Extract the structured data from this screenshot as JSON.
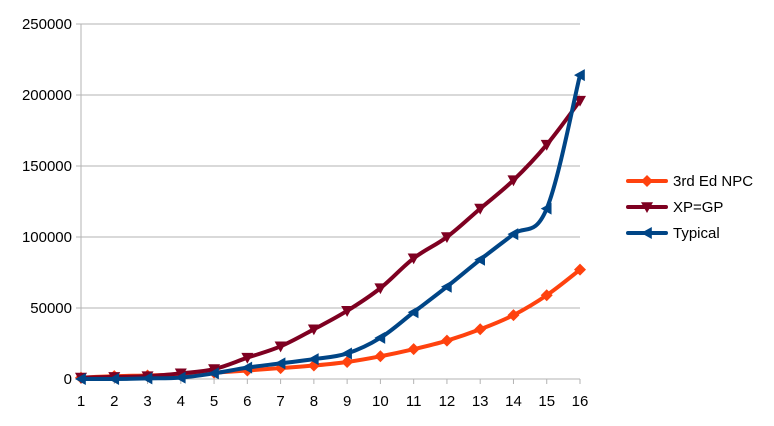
{
  "chart_data": {
    "type": "line",
    "title": "",
    "xlabel": "",
    "ylabel": "",
    "categories": [
      "1",
      "2",
      "3",
      "4",
      "5",
      "6",
      "7",
      "8",
      "9",
      "10",
      "11",
      "12",
      "13",
      "14",
      "15",
      "16"
    ],
    "ylim": [
      0,
      250000
    ],
    "yticks": [
      0,
      50000,
      100000,
      150000,
      200000,
      250000
    ],
    "grid": "horizontal",
    "legend_position": "right",
    "series": [
      {
        "name": "3rd Ed NPC",
        "color": "#ff420e",
        "marker": "diamond",
        "values": [
          900,
          2000,
          2500,
          3300,
          4500,
          6000,
          7700,
          9500,
          12000,
          16000,
          21000,
          27000,
          35000,
          45000,
          59000,
          77000
        ]
      },
      {
        "name": "XP=GP",
        "color": "#7e0021",
        "marker": "triangle-down",
        "values": [
          1000,
          1500,
          2000,
          4000,
          7000,
          15000,
          23000,
          35000,
          48000,
          64000,
          85000,
          100000,
          120000,
          140000,
          165000,
          196000
        ]
      },
      {
        "name": "Typical",
        "color": "#004586",
        "marker": "triangle-left",
        "values": [
          0,
          0,
          400,
          1000,
          4000,
          8000,
          11000,
          14000,
          18000,
          29000,
          47000,
          65000,
          84000,
          102000,
          120000,
          214000
        ]
      }
    ]
  }
}
